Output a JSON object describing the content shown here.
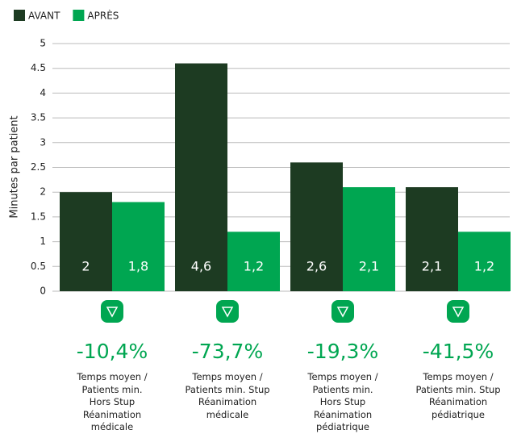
{
  "chart_data": {
    "type": "bar",
    "ylabel": "Minutes par patient",
    "categories": [
      "Temps moyen /\nPatients min.\nHors Stup\nRéanimation\nmédicale",
      "Temps moyen /\nPatients min. Stup\nRéanimation\nmédicale",
      "Temps moyen /\nPatients min.\nHors Stup\nRéanimation\npédiatrique",
      "Temps moyen /\nPatients min. Stup\nRéanimation\npédiatrique"
    ],
    "series": [
      {
        "name": "AVANT",
        "color": "#1d3b22",
        "values": [
          2,
          4.6,
          2.6,
          2.1
        ],
        "value_labels": [
          "2",
          "4,6",
          "2,6",
          "2,1"
        ]
      },
      {
        "name": "APRÈS",
        "color": "#00a651",
        "values": [
          1.8,
          1.2,
          2.1,
          1.2
        ],
        "value_labels": [
          "1,8",
          "1,2",
          "2,1",
          "1,2"
        ]
      }
    ],
    "annotations": [
      "-10,4%",
      "-73,7%",
      "-19,3%",
      "-41,5%"
    ],
    "ylim": [
      0,
      5
    ],
    "yticks": [
      0,
      0.5,
      1,
      1.5,
      2,
      2.5,
      3,
      3.5,
      4,
      4.5,
      5
    ],
    "grid": true,
    "legend": "top-left"
  }
}
